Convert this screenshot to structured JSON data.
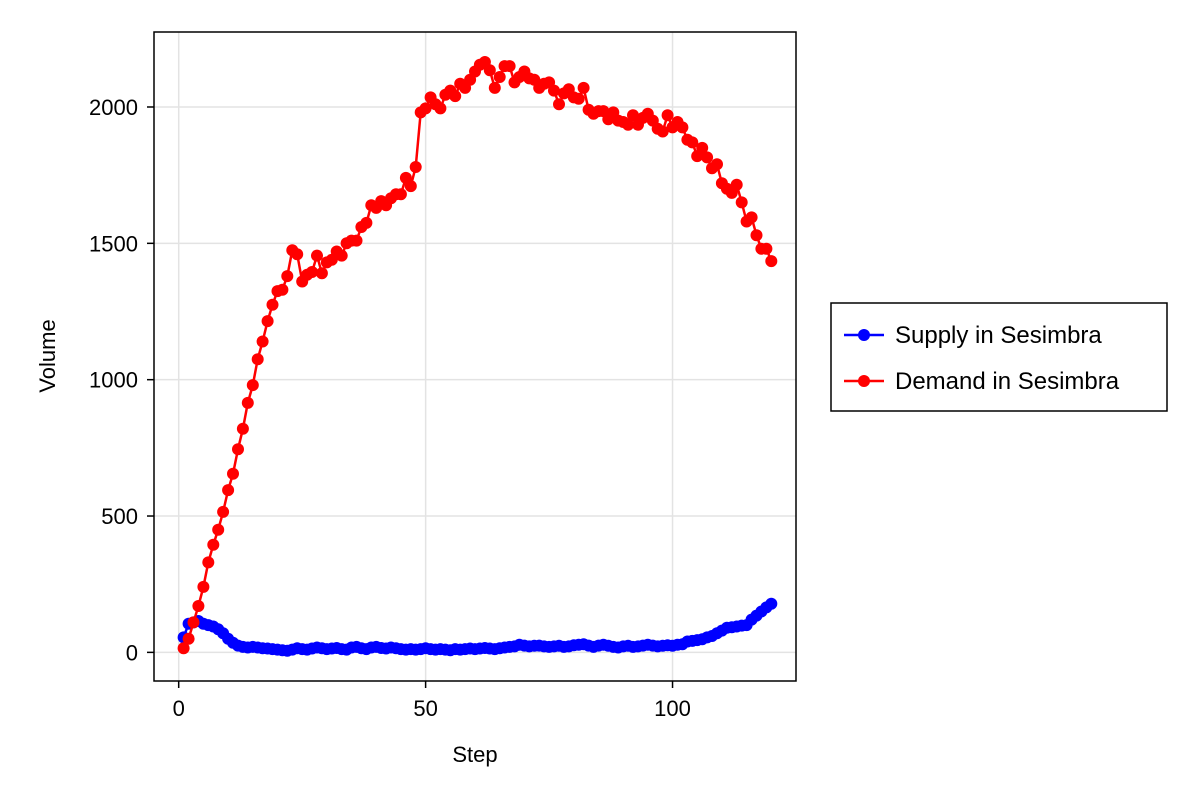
{
  "chart_data": {
    "type": "line",
    "title": "",
    "xlabel": "Step",
    "ylabel": "Volume",
    "xlim": [
      -5,
      125
    ],
    "ylim": [
      -105,
      2275
    ],
    "xticks": [
      0,
      50,
      100
    ],
    "yticks": [
      0,
      500,
      1000,
      1500,
      2000
    ],
    "grid": true,
    "legend_position": "right",
    "series": [
      {
        "name": "Supply in Sesimbra",
        "color": "#0000ff",
        "marker": "circle",
        "x": [
          1,
          2,
          3,
          4,
          5,
          6,
          7,
          8,
          9,
          10,
          11,
          12,
          13,
          14,
          15,
          16,
          17,
          18,
          19,
          20,
          21,
          22,
          23,
          24,
          25,
          26,
          27,
          28,
          29,
          30,
          31,
          32,
          33,
          34,
          35,
          36,
          37,
          38,
          39,
          40,
          41,
          42,
          43,
          44,
          45,
          46,
          47,
          48,
          49,
          50,
          51,
          52,
          53,
          54,
          55,
          56,
          57,
          58,
          59,
          60,
          61,
          62,
          63,
          64,
          65,
          66,
          67,
          68,
          69,
          70,
          71,
          72,
          73,
          74,
          75,
          76,
          77,
          78,
          79,
          80,
          81,
          82,
          83,
          84,
          85,
          86,
          87,
          88,
          89,
          90,
          91,
          92,
          93,
          94,
          95,
          96,
          97,
          98,
          99,
          100,
          101,
          102,
          103,
          104,
          105,
          106,
          107,
          108,
          109,
          110,
          111,
          112,
          113,
          114,
          115,
          116,
          117,
          118,
          119,
          120
        ],
        "values": [
          55,
          105,
          110,
          115,
          105,
          100,
          95,
          85,
          70,
          50,
          35,
          25,
          20,
          18,
          20,
          18,
          15,
          14,
          12,
          10,
          8,
          6,
          10,
          15,
          12,
          10,
          14,
          18,
          15,
          12,
          14,
          16,
          12,
          10,
          18,
          20,
          15,
          12,
          18,
          20,
          16,
          14,
          18,
          15,
          12,
          10,
          12,
          10,
          12,
          15,
          12,
          10,
          12,
          10,
          8,
          12,
          10,
          12,
          14,
          12,
          14,
          16,
          14,
          12,
          15,
          18,
          20,
          22,
          28,
          25,
          22,
          24,
          25,
          22,
          20,
          22,
          24,
          20,
          22,
          26,
          28,
          30,
          25,
          20,
          25,
          28,
          24,
          20,
          18,
          22,
          24,
          20,
          22,
          25,
          28,
          25,
          22,
          24,
          26,
          24,
          28,
          30,
          40,
          42,
          45,
          48,
          55,
          60,
          70,
          80,
          90,
          92,
          95,
          98,
          100,
          120,
          135,
          150,
          165,
          178
        ]
      },
      {
        "name": "Demand in Sesimbra",
        "color": "#ff0000",
        "marker": "circle",
        "x": [
          1,
          2,
          3,
          4,
          5,
          6,
          7,
          8,
          9,
          10,
          11,
          12,
          13,
          14,
          15,
          16,
          17,
          18,
          19,
          20,
          21,
          22,
          23,
          24,
          25,
          26,
          27,
          28,
          29,
          30,
          31,
          32,
          33,
          34,
          35,
          36,
          37,
          38,
          39,
          40,
          41,
          42,
          43,
          44,
          45,
          46,
          47,
          48,
          49,
          50,
          51,
          52,
          53,
          54,
          55,
          56,
          57,
          58,
          59,
          60,
          61,
          62,
          63,
          64,
          65,
          66,
          67,
          68,
          69,
          70,
          71,
          72,
          73,
          74,
          75,
          76,
          77,
          78,
          79,
          80,
          81,
          82,
          83,
          84,
          85,
          86,
          87,
          88,
          89,
          90,
          91,
          92,
          93,
          94,
          95,
          96,
          97,
          98,
          99,
          100,
          101,
          102,
          103,
          104,
          105,
          106,
          107,
          108,
          109,
          110,
          111,
          112,
          113,
          114,
          115,
          116,
          117,
          118,
          119,
          120
        ],
        "values": [
          15,
          50,
          110,
          170,
          240,
          330,
          395,
          450,
          515,
          595,
          655,
          745,
          820,
          915,
          980,
          1075,
          1140,
          1215,
          1275,
          1325,
          1330,
          1380,
          1475,
          1460,
          1360,
          1385,
          1395,
          1455,
          1390,
          1430,
          1440,
          1470,
          1455,
          1500,
          1510,
          1510,
          1560,
          1575,
          1640,
          1630,
          1655,
          1640,
          1665,
          1680,
          1680,
          1740,
          1710,
          1780,
          1980,
          1995,
          2035,
          2010,
          1995,
          2045,
          2060,
          2040,
          2085,
          2070,
          2100,
          2130,
          2155,
          2165,
          2135,
          2070,
          2110,
          2150,
          2150,
          2090,
          2110,
          2130,
          2105,
          2100,
          2070,
          2085,
          2090,
          2060,
          2010,
          2050,
          2065,
          2035,
          2030,
          2070,
          1990,
          1975,
          1985,
          1985,
          1955,
          1980,
          1950,
          1945,
          1935,
          1970,
          1935,
          1960,
          1975,
          1950,
          1920,
          1910,
          1970,
          1925,
          1945,
          1925,
          1880,
          1870,
          1820,
          1850,
          1815,
          1775,
          1790,
          1720,
          1700,
          1685,
          1715,
          1650,
          1580,
          1595,
          1530,
          1480,
          1480,
          1435
        ]
      }
    ]
  }
}
